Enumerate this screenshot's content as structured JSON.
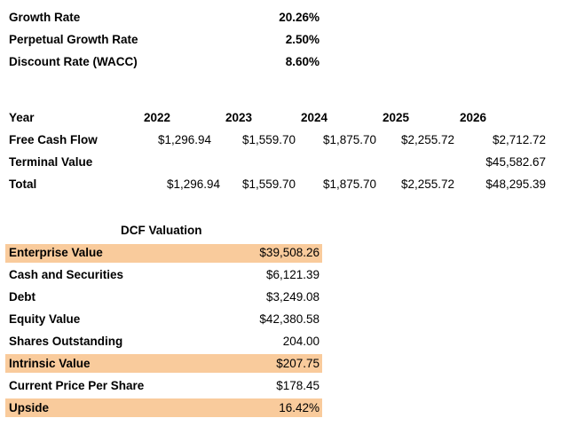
{
  "assumptions": [
    {
      "label": "Growth Rate",
      "value": "20.26%"
    },
    {
      "label": "Perpetual Growth Rate",
      "value": "2.50%"
    },
    {
      "label": "Discount Rate (WACC)",
      "value": "8.60%"
    }
  ],
  "projection": {
    "year_label": "Year",
    "years": [
      "2022",
      "2023",
      "2024",
      "2025",
      "2026"
    ],
    "rows": [
      {
        "label": "Free Cash Flow",
        "values": [
          "$1,296.94",
          "$1,559.70",
          "$1,875.70",
          "$2,255.72",
          "$2,712.72"
        ]
      },
      {
        "label": "Terminal Value",
        "values": [
          "",
          "",
          "",
          "",
          "$45,582.67"
        ]
      },
      {
        "label": "Total",
        "values": [
          "$1,296.94",
          "$1,559.70",
          "$1,875.70",
          "$2,255.72",
          "$48,295.39"
        ]
      }
    ]
  },
  "valuation": {
    "title": "DCF Valuation",
    "highlight_color": "#f9cb9c",
    "rows": [
      {
        "label": "Enterprise Value",
        "value": "$39,508.26",
        "highlight": true
      },
      {
        "label": "Cash and Securities",
        "value": "$6,121.39",
        "highlight": false
      },
      {
        "label": "Debt",
        "value": "$3,249.08",
        "highlight": false
      },
      {
        "label": "Equity Value",
        "value": "$42,380.58",
        "highlight": false
      },
      {
        "label": "Shares Outstanding",
        "value": "204.00",
        "highlight": false
      },
      {
        "label": "Intrinsic Value",
        "value": "$207.75",
        "highlight": true
      },
      {
        "label": "Current Price Per Share",
        "value": "$178.45",
        "highlight": false
      },
      {
        "label": "Upside",
        "value": "16.42%",
        "highlight": true
      }
    ]
  }
}
